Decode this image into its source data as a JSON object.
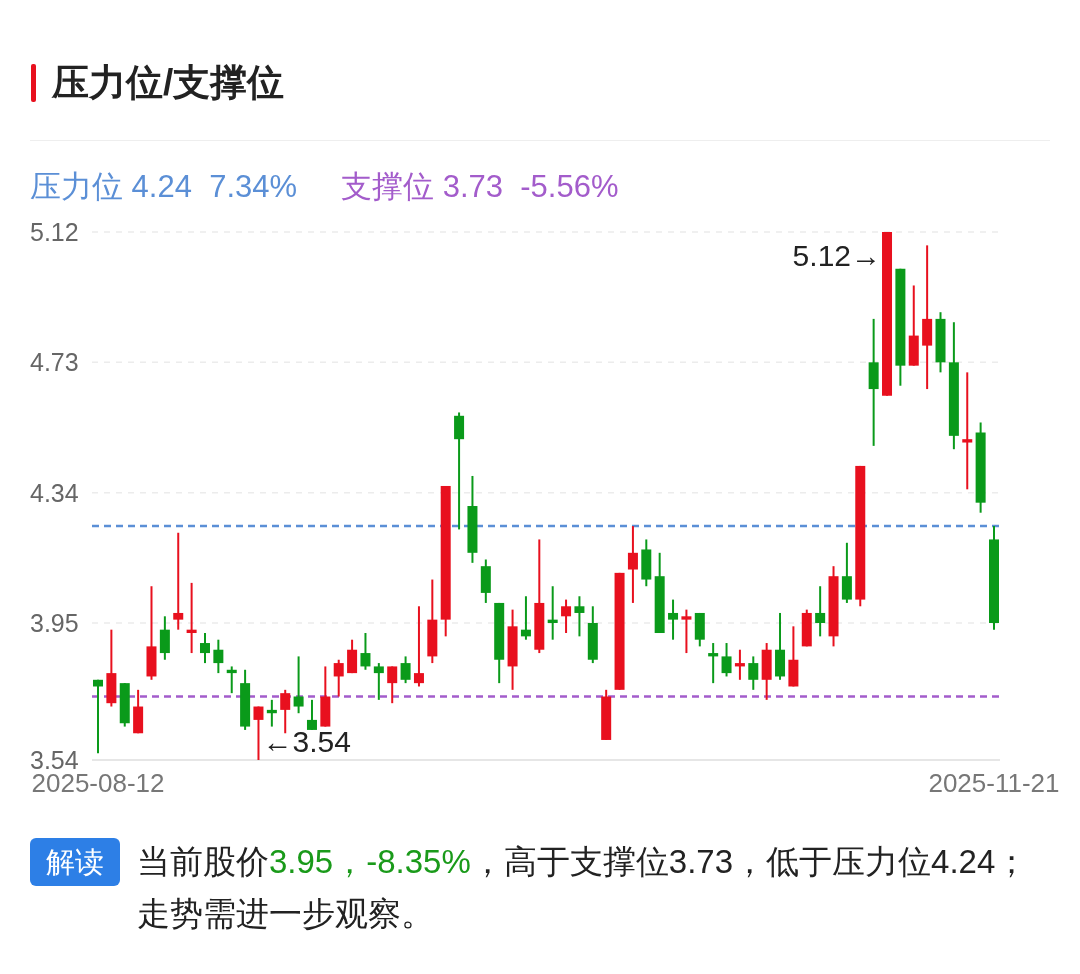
{
  "chart_data": {
    "type": "candlestick",
    "title": "压力位/支撑位",
    "categories": [
      "2025-08-12",
      null,
      null,
      null,
      null,
      null,
      null,
      null,
      null,
      null,
      null,
      null,
      null,
      null,
      null,
      null,
      null,
      null,
      null,
      null,
      null,
      null,
      null,
      null,
      null,
      null,
      null,
      null,
      null,
      null,
      null,
      null,
      null,
      null,
      null,
      null,
      null,
      null,
      null,
      null,
      null,
      null,
      null,
      null,
      null,
      null,
      null,
      null,
      null,
      null,
      null,
      null,
      null,
      null,
      null,
      null,
      null,
      null,
      null,
      null,
      null,
      null,
      null,
      null,
      null,
      null,
      null,
      "2025-11-21"
    ],
    "ohlc": [
      [
        3.78,
        3.78,
        3.56,
        3.76
      ],
      [
        3.71,
        3.93,
        3.7,
        3.8
      ],
      [
        3.77,
        3.77,
        3.64,
        3.65
      ],
      [
        3.62,
        3.75,
        3.62,
        3.7
      ],
      [
        3.79,
        4.06,
        3.78,
        3.88
      ],
      [
        3.93,
        3.97,
        3.84,
        3.86
      ],
      [
        3.96,
        4.22,
        3.93,
        3.98
      ],
      [
        3.92,
        4.07,
        3.86,
        3.93
      ],
      [
        3.89,
        3.92,
        3.83,
        3.86
      ],
      [
        3.87,
        3.9,
        3.8,
        3.83
      ],
      [
        3.81,
        3.82,
        3.74,
        3.8
      ],
      [
        3.77,
        3.81,
        3.63,
        3.64
      ],
      [
        3.66,
        3.7,
        3.54,
        3.7
      ],
      [
        3.69,
        3.72,
        3.64,
        3.68
      ],
      [
        3.69,
        3.75,
        3.62,
        3.74
      ],
      [
        3.73,
        3.85,
        3.68,
        3.7
      ],
      [
        3.66,
        3.72,
        3.63,
        3.63
      ],
      [
        3.64,
        3.82,
        3.64,
        3.73
      ],
      [
        3.79,
        3.84,
        3.73,
        3.83
      ],
      [
        3.8,
        3.9,
        3.8,
        3.87
      ],
      [
        3.86,
        3.92,
        3.81,
        3.82
      ],
      [
        3.82,
        3.83,
        3.72,
        3.8
      ],
      [
        3.77,
        3.82,
        3.71,
        3.82
      ],
      [
        3.83,
        3.85,
        3.77,
        3.78
      ],
      [
        3.77,
        4.0,
        3.76,
        3.8
      ],
      [
        3.85,
        4.08,
        3.83,
        3.96
      ],
      [
        3.96,
        4.36,
        3.91,
        4.36
      ],
      [
        4.57,
        4.58,
        4.23,
        4.5
      ],
      [
        4.3,
        4.39,
        4.13,
        4.16
      ],
      [
        4.12,
        4.14,
        4.01,
        4.04
      ],
      [
        4.01,
        4.01,
        3.77,
        3.84
      ],
      [
        3.82,
        3.99,
        3.75,
        3.94
      ],
      [
        3.93,
        4.03,
        3.9,
        3.91
      ],
      [
        3.87,
        4.2,
        3.86,
        4.01
      ],
      [
        3.96,
        4.06,
        3.9,
        3.95
      ],
      [
        3.97,
        4.02,
        3.92,
        4.0
      ],
      [
        4.0,
        4.03,
        3.91,
        3.98
      ],
      [
        3.95,
        4.0,
        3.83,
        3.84
      ],
      [
        3.6,
        3.75,
        3.6,
        3.73
      ],
      [
        3.75,
        4.1,
        3.75,
        4.1
      ],
      [
        4.11,
        4.24,
        4.01,
        4.16
      ],
      [
        4.17,
        4.2,
        4.06,
        4.08
      ],
      [
        4.09,
        4.16,
        3.92,
        3.92
      ],
      [
        3.98,
        4.02,
        3.9,
        3.96
      ],
      [
        3.96,
        3.99,
        3.86,
        3.97
      ],
      [
        3.98,
        3.98,
        3.88,
        3.9
      ],
      [
        3.86,
        3.89,
        3.77,
        3.85
      ],
      [
        3.85,
        3.89,
        3.79,
        3.8
      ],
      [
        3.82,
        3.87,
        3.78,
        3.83
      ],
      [
        3.83,
        3.85,
        3.75,
        3.78
      ],
      [
        3.78,
        3.89,
        3.72,
        3.87
      ],
      [
        3.87,
        3.98,
        3.78,
        3.79
      ],
      [
        3.76,
        3.94,
        3.76,
        3.84
      ],
      [
        3.88,
        3.99,
        3.88,
        3.98
      ],
      [
        3.98,
        4.06,
        3.91,
        3.95
      ],
      [
        3.91,
        4.12,
        3.88,
        4.09
      ],
      [
        4.09,
        4.19,
        4.01,
        4.02
      ],
      [
        4.02,
        4.42,
        4.0,
        4.42
      ],
      [
        4.73,
        4.86,
        4.48,
        4.65
      ],
      [
        4.63,
        5.12,
        4.63,
        5.12
      ],
      [
        5.01,
        5.01,
        4.66,
        4.72
      ],
      [
        4.72,
        4.96,
        4.72,
        4.81
      ],
      [
        4.78,
        5.08,
        4.65,
        4.86
      ],
      [
        4.86,
        4.88,
        4.7,
        4.73
      ],
      [
        4.73,
        4.85,
        4.47,
        4.51
      ],
      [
        4.49,
        4.7,
        4.35,
        4.5
      ],
      [
        4.52,
        4.55,
        4.28,
        4.31
      ],
      [
        4.2,
        4.24,
        3.93,
        3.95
      ]
    ],
    "ylim": [
      3.54,
      5.12
    ],
    "yticks": [
      5.12,
      4.73,
      4.34,
      3.95,
      3.54
    ],
    "grid": "y",
    "ref_lines": [
      {
        "axis": "y",
        "value": 4.24,
        "label": "压力位 4.24  7.34%",
        "color": "#5b8fd6",
        "line_style": "dashed"
      },
      {
        "axis": "y",
        "value": 3.73,
        "label": "支撑位 3.73  -5.56%",
        "color": "#a35ccb",
        "line_style": "dashed"
      }
    ],
    "annotations": [
      "5.12→",
      "←3.54",
      "解读",
      "当前股价",
      "3.95，-8.35%",
      "，高于支撑位3.73，低于压力位4.24；走势需进一步观察。"
    ]
  }
}
